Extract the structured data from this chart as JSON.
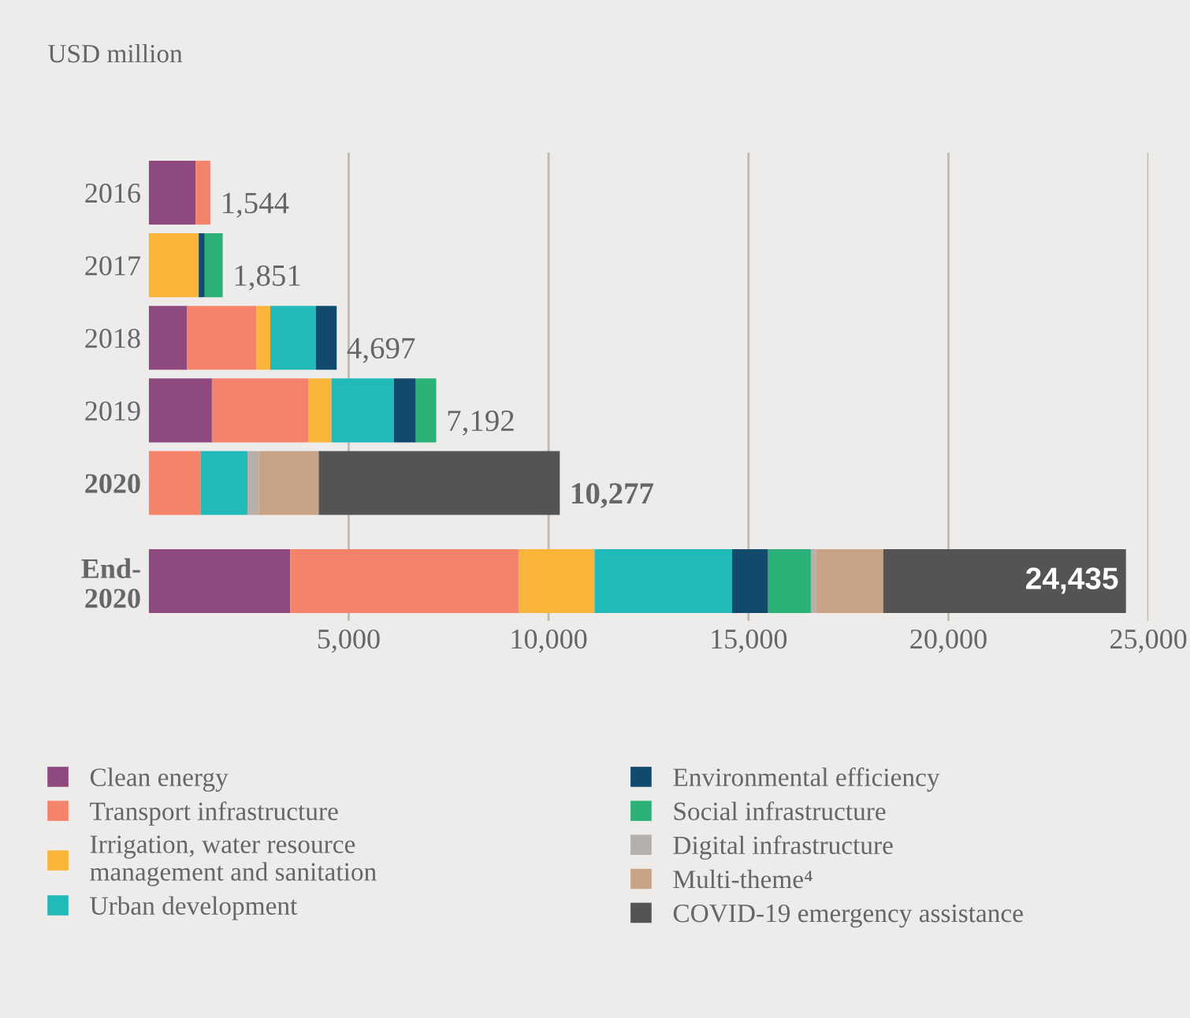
{
  "chart_data": {
    "type": "bar",
    "orientation": "horizontal",
    "stacked": true,
    "xlabel": "USD million",
    "categories": [
      "2016",
      "2017",
      "2018",
      "2019",
      "2020",
      "End-\n2020"
    ],
    "series": [
      {
        "name": "Clean energy",
        "color": "#8e4a7e",
        "values": [
          1170,
          null,
          960,
          1580,
          null,
          3540
        ]
      },
      {
        "name": "Transport infrastructure",
        "color": "#f5836b",
        "values": [
          370,
          null,
          1730,
          2420,
          1300,
          5720
        ]
      },
      {
        "name": "Irrigation, water resource\nmanagement and sanitation",
        "color": "#fbb43a",
        "values": [
          null,
          1250,
          350,
          570,
          null,
          1890
        ]
      },
      {
        "name": "Urban development",
        "color": "#22b9b9",
        "values": [
          null,
          null,
          1140,
          1560,
          1170,
          3440
        ]
      },
      {
        "name": "Environmental efficiency",
        "color": "#124a6e",
        "values": [
          null,
          150,
          520,
          550,
          null,
          900
        ]
      },
      {
        "name": "Social infrastructure",
        "color": "#2bb078",
        "values": [
          null,
          450,
          null,
          510,
          null,
          1070
        ]
      },
      {
        "name": "Digital infrastructure",
        "color": "#b5b0ab",
        "values": [
          null,
          null,
          null,
          null,
          280,
          130
        ]
      },
      {
        "name": "Multi-theme⁴",
        "color": "#c9a386",
        "values": [
          null,
          null,
          null,
          null,
          1500,
          1680
        ]
      },
      {
        "name": "COVID-19 emergency assistance",
        "color": "#545454",
        "values": [
          null,
          null,
          null,
          null,
          6030,
          6070
        ]
      }
    ],
    "totals": [
      "1,544",
      "1,851",
      "4,697",
      "7,192",
      "10,277",
      "24,435"
    ],
    "xlim": [
      0,
      25000
    ],
    "xticks": [
      {
        "value": 5000,
        "label": "5,000"
      },
      {
        "value": 10000,
        "label": "10,000"
      },
      {
        "value": 15000,
        "label": "15,000"
      },
      {
        "value": 20000,
        "label": "20,000"
      },
      {
        "value": 25000,
        "label": "25,000"
      }
    ],
    "grid": "x",
    "legend": "bottom"
  }
}
